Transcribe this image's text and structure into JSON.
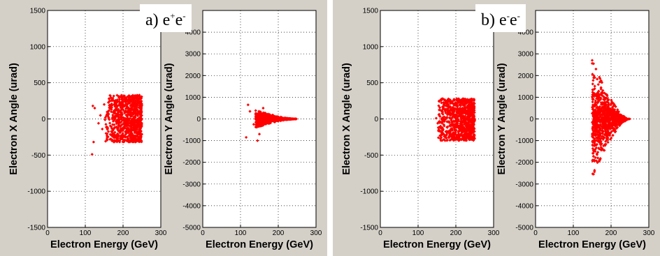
{
  "colors": {
    "figure_bg": "#d4d0c8",
    "axes_bg": "#ffffff",
    "marker": "#ff0000",
    "grid": "#000000"
  },
  "panels": [
    {
      "title_main": "a) e",
      "title_sup": "+",
      "title_mid": "e",
      "title_sup2": "-"
    },
    {
      "title_main": "b) e",
      "title_sup": "-",
      "title_mid": "e",
      "title_sup2": "-"
    }
  ],
  "chart_data": [
    {
      "type": "scatter",
      "panel": "a",
      "series": "e+e-",
      "xlabel": "Electron Energy (GeV)",
      "ylabel": "Electron X Angle (urad)",
      "xlim": [
        0,
        300
      ],
      "ylim": [
        -1500,
        1500
      ],
      "xticks": [
        "0",
        "100",
        "200",
        "300"
      ],
      "yticks": [
        "-1500",
        "-1000",
        "-500",
        "0",
        "500",
        "1000",
        "1500"
      ],
      "grid": true,
      "distribution": {
        "energy_min": 150,
        "energy_max": 250,
        "angle_min": -320,
        "angle_max": 330
      },
      "outliers": [
        [
          118,
          -490
        ],
        [
          122,
          -320
        ],
        [
          120,
          180
        ],
        [
          125,
          150
        ],
        [
          135,
          -60
        ],
        [
          140,
          50
        ],
        [
          145,
          -140
        ],
        [
          150,
          200
        ],
        [
          155,
          -200
        ],
        [
          160,
          -250
        ]
      ]
    },
    {
      "type": "scatter",
      "panel": "a",
      "series": "e+e-",
      "xlabel": "Electron Energy (GeV)",
      "ylabel": "Electron Y Angle (urad)",
      "xlim": [
        0,
        300
      ],
      "ylim": [
        -5000,
        5000
      ],
      "xticks": [
        "0",
        "100",
        "200",
        "300"
      ],
      "yticks": [
        "-5000",
        "-4000",
        "-3000",
        "-2000",
        "-1000",
        "0",
        "1000",
        "2000",
        "3000",
        "4000"
      ],
      "grid": true,
      "distribution": {
        "energy_min": 140,
        "energy_max": 250,
        "angle_max_abs": 400
      },
      "outliers": [
        [
          120,
          650
        ],
        [
          125,
          350
        ],
        [
          115,
          -850
        ],
        [
          145,
          -1000
        ],
        [
          135,
          -250
        ],
        [
          150,
          -700
        ],
        [
          160,
          500
        ]
      ]
    },
    {
      "type": "scatter",
      "panel": "b",
      "series": "e-e-",
      "xlabel": "Electron Energy (GeV)",
      "ylabel": "Electron X Angle (urad)",
      "xlim": [
        0,
        300
      ],
      "ylim": [
        -1500,
        1500
      ],
      "xticks": [
        "0",
        "100",
        "200",
        "300"
      ],
      "yticks": [
        "-1500",
        "-1000",
        "-500",
        "0",
        "500",
        "1000",
        "1500"
      ],
      "grid": true,
      "distribution": {
        "energy_min": 150,
        "energy_max": 250,
        "angle_min": -300,
        "angle_max": 280
      },
      "outliers": [
        [
          148,
          10
        ],
        [
          152,
          -60
        ],
        [
          155,
          60
        ],
        [
          158,
          -120
        ],
        [
          160,
          120
        ]
      ]
    },
    {
      "type": "scatter",
      "panel": "b",
      "series": "e-e-",
      "xlabel": "Electron Energy (GeV)",
      "ylabel": "Electron Y Angle (urad)",
      "xlim": [
        0,
        300
      ],
      "ylim": [
        -5000,
        5000
      ],
      "xticks": [
        "0",
        "100",
        "200",
        "300"
      ],
      "yticks": [
        "-5000",
        "-4000",
        "-3000",
        "-2000",
        "-1000",
        "0",
        "1000",
        "2000",
        "3000",
        "4000"
      ],
      "grid": true,
      "distribution": {
        "energy_min": 150,
        "energy_max": 250,
        "angle_max_abs": 2700
      },
      "outliers": [
        [
          150,
          2700
        ],
        [
          160,
          2300
        ],
        [
          165,
          -1800
        ],
        [
          158,
          -1500
        ],
        [
          170,
          1700
        ]
      ]
    }
  ]
}
